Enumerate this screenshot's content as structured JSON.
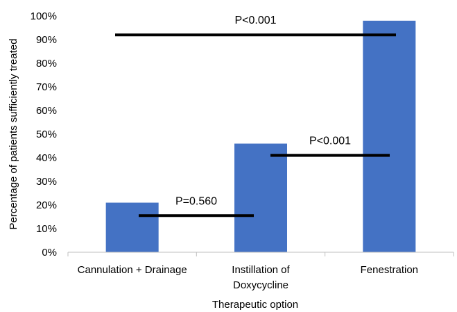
{
  "chart_data": {
    "type": "bar",
    "categories": [
      [
        "Cannulation + Drainage"
      ],
      [
        "Instillation of",
        "Doxycycline"
      ],
      [
        "Fenestration"
      ]
    ],
    "values": [
      21,
      46,
      98
    ],
    "xlabel": "Therapeutic option",
    "ylabel": "Percentage of patients sufficiently treated",
    "ylim": [
      0,
      100
    ],
    "yticks": [
      "0%",
      "10%",
      "20%",
      "30%",
      "40%",
      "50%",
      "60%",
      "70%",
      "80%",
      "90%",
      "100%"
    ],
    "grid": false,
    "bar_color": "#4472C4",
    "annotations": [
      {
        "text": "P=0.560",
        "from": 0,
        "to": 1,
        "y": 15.5
      },
      {
        "text": "P<0.001",
        "from": 1,
        "to": 2,
        "y": 41
      },
      {
        "text": "P<0.001",
        "from": 0,
        "to": 2,
        "y": 92
      }
    ]
  }
}
